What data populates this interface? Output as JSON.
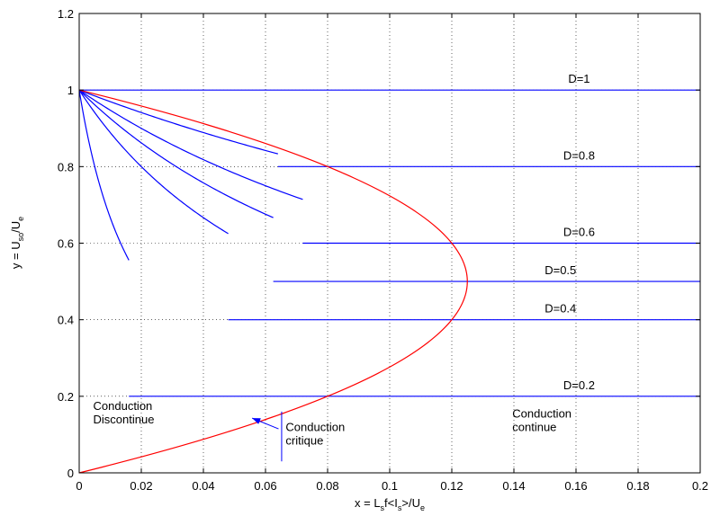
{
  "chart_data": {
    "type": "line",
    "xlabel": {
      "parts": [
        {
          "t": "x = L"
        },
        {
          "t": "s",
          "sub": true
        },
        {
          "t": "f<I"
        },
        {
          "t": "s",
          "sub": true
        },
        {
          "t": ">/U"
        },
        {
          "t": "e",
          "sub": true
        }
      ]
    },
    "ylabel": {
      "parts": [
        {
          "t": "y = U"
        },
        {
          "t": "so",
          "sub": true
        },
        {
          "t": "/U"
        },
        {
          "t": "e",
          "sub": true
        }
      ]
    },
    "xlim": [
      0,
      0.2
    ],
    "ylim": [
      0,
      1.2
    ],
    "xticks": [
      0,
      0.02,
      0.04,
      0.06,
      0.08,
      0.1,
      0.12,
      0.14,
      0.16,
      0.18,
      0.2
    ],
    "xtick_labels": [
      "0",
      "0.02",
      "0.04",
      "0.06",
      "0.08",
      "0.1",
      "0.12",
      "0.14",
      "0.16",
      "0.18",
      "0.2"
    ],
    "yticks": [
      0,
      0.2,
      0.4,
      0.6,
      0.8,
      1,
      1.2
    ],
    "ytick_labels": [
      "0",
      "0.2",
      "0.4",
      "0.6",
      "0.8",
      "1",
      "1.2"
    ],
    "grid": true,
    "colors": {
      "discontinuous": "#0000ff",
      "continuous": "#0000ff",
      "critical": "#ff0000",
      "arrow": "#0000ff"
    },
    "series": [
      {
        "D": 1,
        "label": "D=1"
      },
      {
        "D": 0.8,
        "label": "D=0.8"
      },
      {
        "D": 0.6,
        "label": "D=0.6"
      },
      {
        "D": 0.5,
        "label": "D=0.5"
      },
      {
        "D": 0.4,
        "label": "D=0.4"
      },
      {
        "D": 0.2,
        "label": "D=0.2"
      }
    ],
    "critical_curve": {
      "equation": "x = y(1 - y)/2"
    },
    "annotations": {
      "discontinuous": [
        "Conduction",
        "Discontinue"
      ],
      "continuous": [
        "Conduction",
        "continue"
      ],
      "critical": [
        "Conduction",
        "critique"
      ]
    }
  }
}
